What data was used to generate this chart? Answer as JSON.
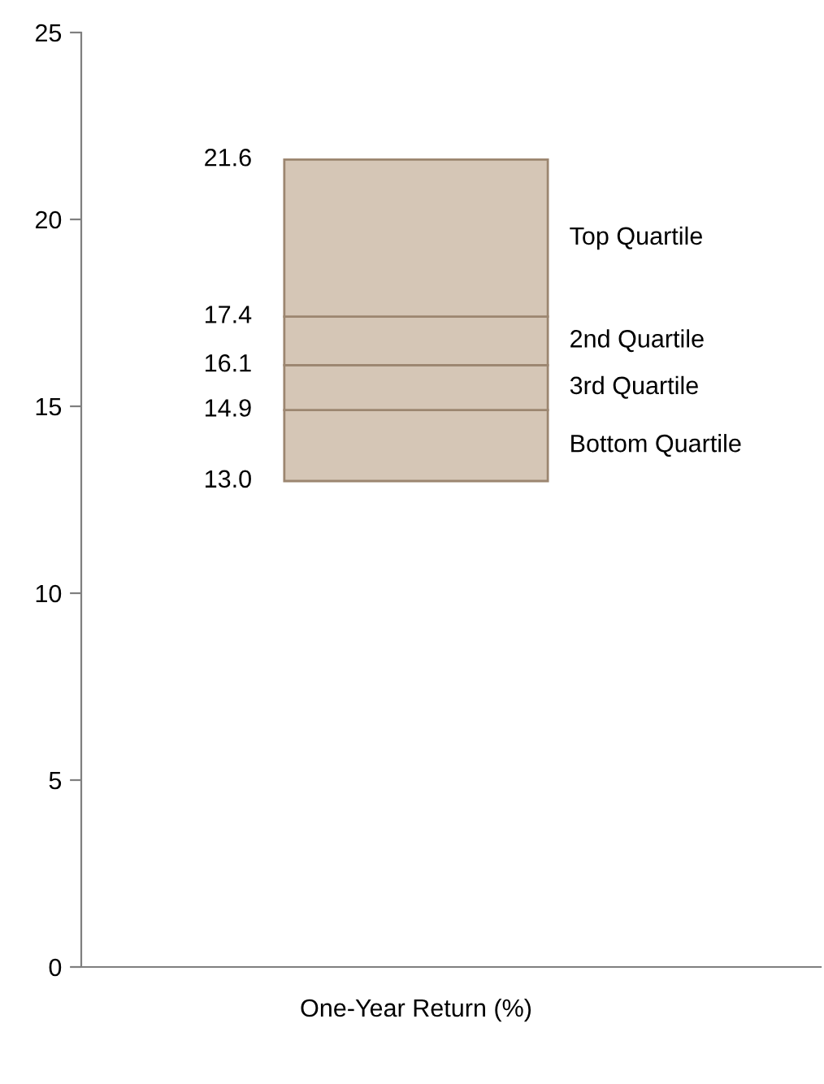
{
  "chart_data": {
    "type": "bar",
    "categories": [
      "One-Year Return (%)"
    ],
    "series": [
      {
        "name": "Bottom Quartile",
        "color": "#d5c6b6",
        "base": [
          13.0
        ],
        "values": [
          1.9
        ]
      },
      {
        "name": "3rd Quartile",
        "color": "#d5c6b6",
        "base": [
          14.9
        ],
        "values": [
          1.2
        ]
      },
      {
        "name": "2nd Quartile",
        "color": "#d5c6b6",
        "base": [
          16.1
        ],
        "values": [
          1.3
        ]
      },
      {
        "name": "Top Quartile",
        "color": "#d5c6b6",
        "base": [
          17.4
        ],
        "values": [
          4.2
        ]
      }
    ],
    "annotations": [
      "13.0",
      "14.9",
      "16.1",
      "17.4",
      "21.6"
    ],
    "ylim": [
      0,
      25
    ],
    "yticks": [
      0,
      5,
      10,
      15,
      20,
      25
    ],
    "grid": false,
    "legend": false
  }
}
